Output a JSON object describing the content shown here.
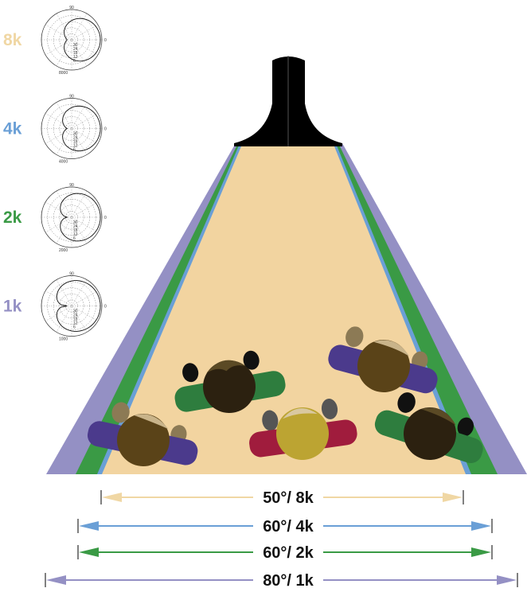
{
  "polar_plots": [
    {
      "label": "8k",
      "color": "#f0d7a4",
      "top_label": "90",
      "right_label": "0",
      "rings": [
        "30",
        "24",
        "18",
        "12",
        "6"
      ],
      "bottom_label": "8000"
    },
    {
      "label": "4k",
      "color": "#6a9fd6",
      "top_label": "90",
      "right_label": "0",
      "rings": [
        "30",
        "24",
        "18",
        "12",
        "6"
      ],
      "bottom_label": "4000"
    },
    {
      "label": "2k",
      "color": "#3a9a45",
      "top_label": "90",
      "right_label": "0",
      "rings": [
        "30",
        "24",
        "18",
        "12",
        "6"
      ],
      "bottom_label": "2000"
    },
    {
      "label": "1k",
      "color": "#9490c4",
      "top_label": "90",
      "right_label": "0",
      "rings": [
        "30",
        "24",
        "18",
        "12",
        "6"
      ],
      "bottom_label": "1000"
    }
  ],
  "arrows": [
    {
      "label": "50°/ 8k",
      "color": "#f0d7a4"
    },
    {
      "label": "60°/ 4k",
      "color": "#6a9fd6"
    },
    {
      "label": "60°/ 2k",
      "color": "#3a9a45"
    },
    {
      "label": "80°/ 1k",
      "color": "#9490c4"
    }
  ]
}
